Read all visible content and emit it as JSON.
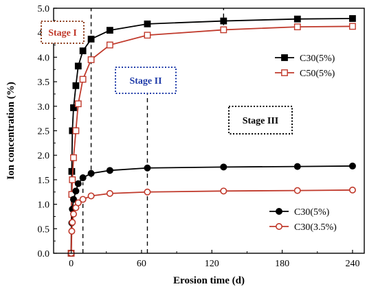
{
  "chart_data": {
    "type": "line",
    "xlabel": "Erosion time (d)",
    "ylabel": "Ion concentration (%)",
    "xlim": [
      -15,
      250
    ],
    "ylim": [
      0,
      5.0
    ],
    "xticks": [
      0,
      60,
      120,
      180,
      240
    ],
    "yticks": [
      0.0,
      0.5,
      1.0,
      1.5,
      2.0,
      2.5,
      3.0,
      3.5,
      4.0,
      4.5,
      5.0
    ],
    "ytick_labels": [
      "0.0",
      "0.5",
      "1.0",
      "1.5",
      "2.0",
      "2.5",
      "3.0",
      "3.5",
      "4.0",
      "4.5",
      "5.0"
    ],
    "grid": false,
    "series": [
      {
        "name": "C30(5%)",
        "color": "#000000",
        "marker": "filled-square",
        "x": [
          0,
          0.5,
          1,
          2,
          4,
          6,
          10,
          17,
          33,
          65,
          130,
          193,
          240
        ],
        "y": [
          0,
          1.67,
          2.5,
          2.97,
          3.42,
          3.82,
          4.13,
          4.37,
          4.55,
          4.68,
          4.74,
          4.78,
          4.79
        ]
      },
      {
        "name": "C50(5%)",
        "color": "#c0392b",
        "marker": "open-square",
        "x": [
          0,
          0.5,
          1,
          2,
          4,
          6,
          10,
          17,
          33,
          65,
          130,
          193,
          240
        ],
        "y": [
          0,
          1.2,
          1.5,
          1.95,
          2.5,
          3.05,
          3.55,
          3.95,
          4.25,
          4.45,
          4.56,
          4.62,
          4.63
        ]
      },
      {
        "name": "C30(5%)",
        "color": "#000000",
        "marker": "filled-circle",
        "x": [
          0,
          0.5,
          1,
          2,
          4,
          6,
          10,
          17,
          33,
          65,
          130,
          193,
          240
        ],
        "y": [
          0,
          0.62,
          0.9,
          1.1,
          1.27,
          1.42,
          1.54,
          1.63,
          1.69,
          1.74,
          1.76,
          1.77,
          1.78
        ]
      },
      {
        "name": "C30(3.5%)",
        "color": "#c0392b",
        "marker": "open-circle",
        "x": [
          0,
          0.5,
          1,
          2,
          4,
          6,
          10,
          17,
          33,
          65,
          130,
          193,
          240
        ],
        "y": [
          0,
          0.45,
          0.63,
          0.8,
          0.93,
          1.03,
          1.1,
          1.17,
          1.22,
          1.25,
          1.27,
          1.28,
          1.29
        ]
      }
    ],
    "vlines": [
      {
        "x": 17,
        "y_from": 1.55,
        "y_to": 5.0
      },
      {
        "x": 10,
        "y_from": 0,
        "y_to": 1.45
      },
      {
        "x": 65,
        "y_from": 0,
        "y_to": 3.75
      },
      {
        "x": 130,
        "y_from": 4.5,
        "y_to": 5.0
      }
    ],
    "annotations": [
      {
        "text": "Stage I",
        "color": "#c0392b",
        "box_color": "#8b3a1a"
      },
      {
        "text": "Stage II",
        "color": "#1f3ba8",
        "box_color": "#1f3ba8"
      },
      {
        "text": "Stage III",
        "color": "#000000",
        "box_color": "#000000"
      }
    ],
    "legends": [
      {
        "placement": "upper-right",
        "entries": [
          0,
          1
        ]
      },
      {
        "placement": "lower-right",
        "entries": [
          2,
          3
        ]
      }
    ]
  }
}
